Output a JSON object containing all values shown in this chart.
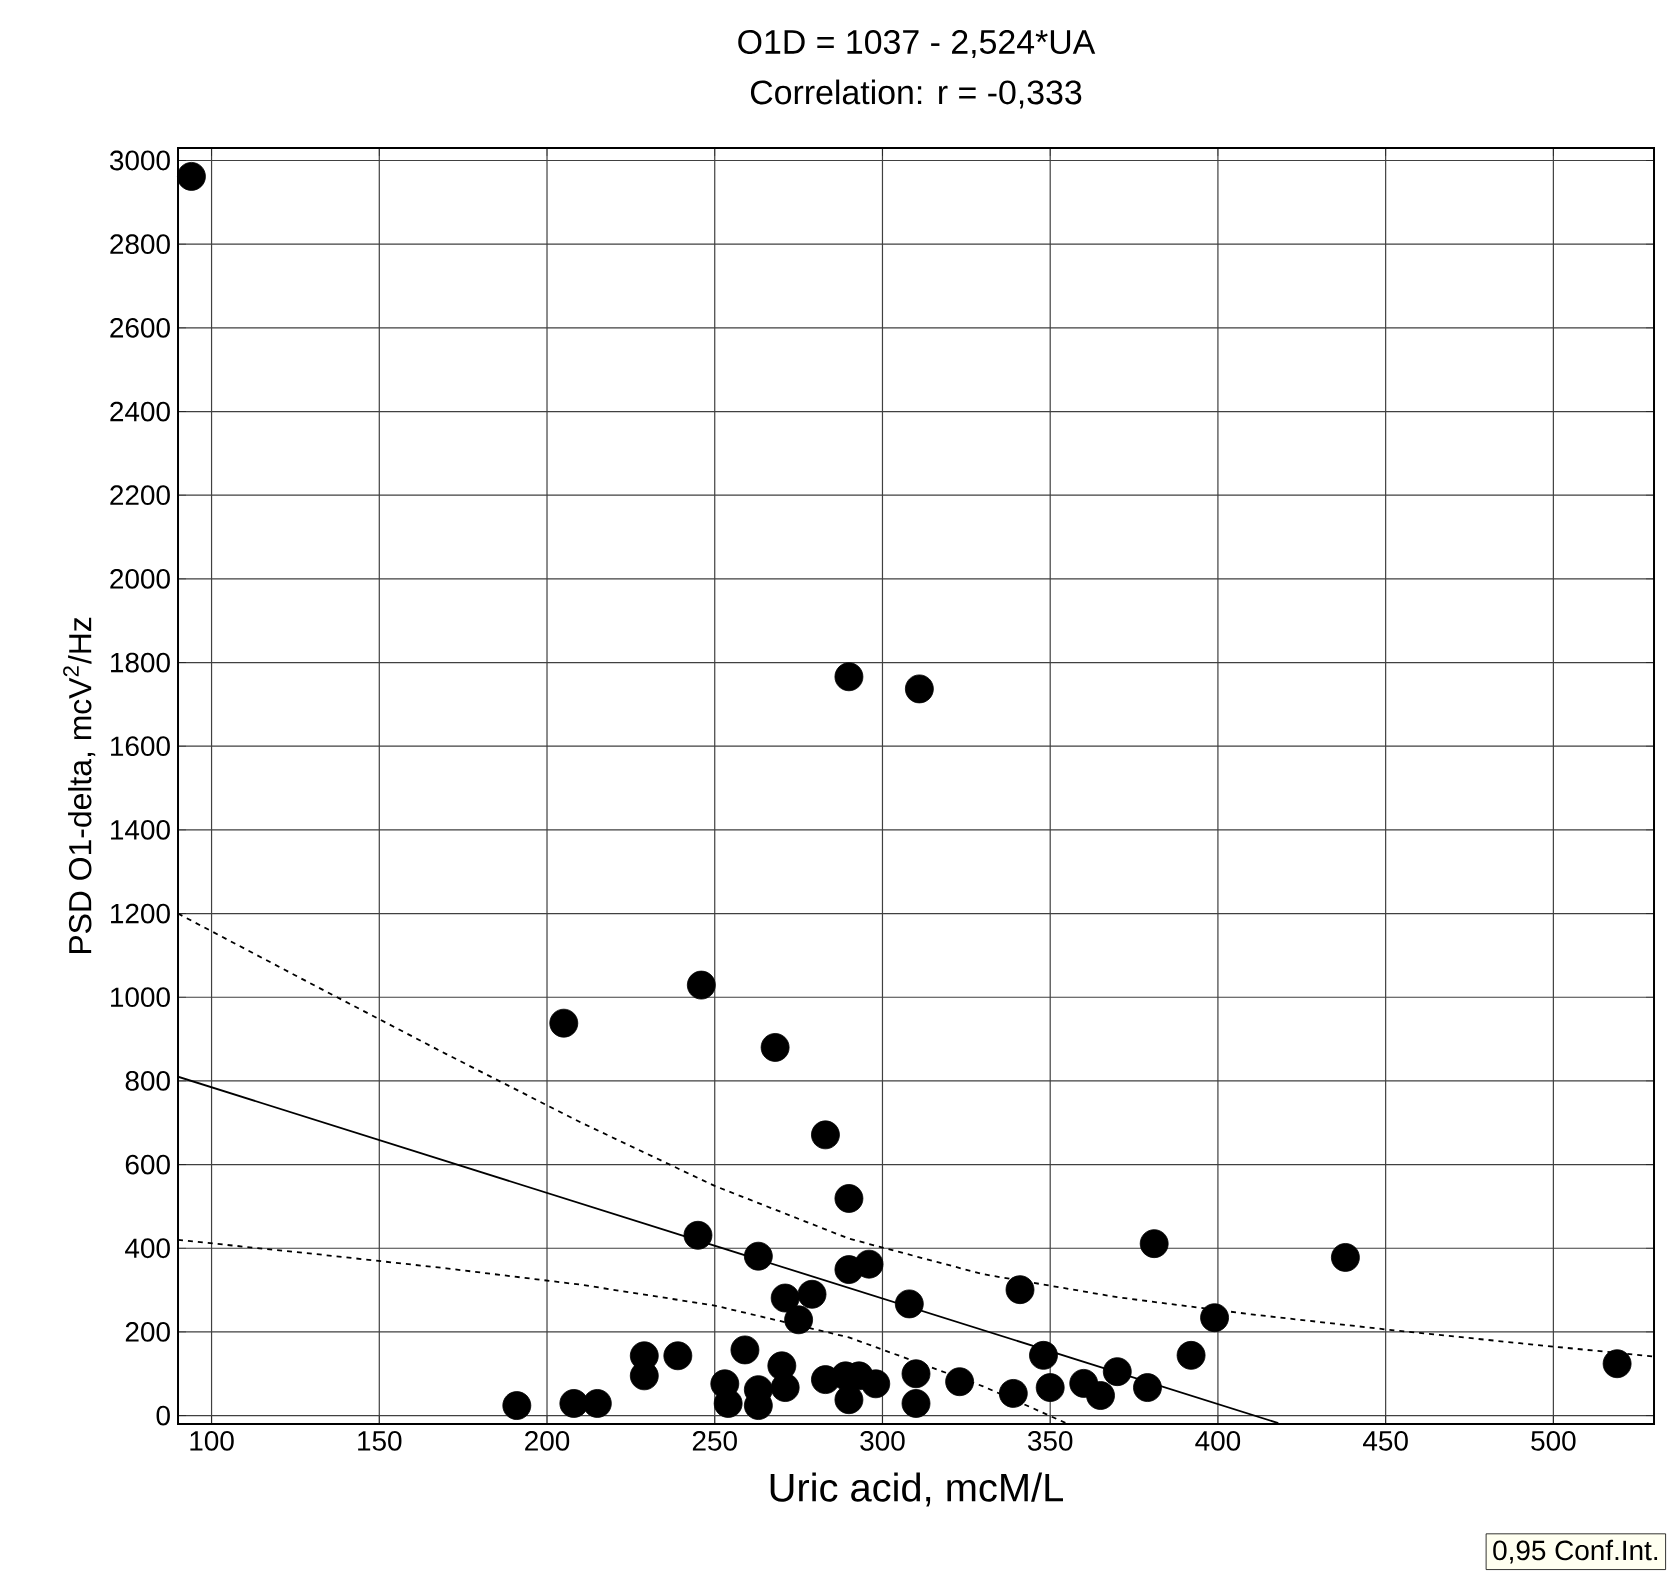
{
  "chart_data": {
    "type": "scatter",
    "title": "O1D = 1037 - 2,524*UA",
    "subtitle": "Correlation: r = -0,333",
    "xlabel": "Uric acid, mcM/L",
    "ylabel": "PSD O1-delta, mcV$^{2}$/Hz",
    "annotations": [
      "0,95 Conf.Int."
    ],
    "xlim": [
      90,
      530
    ],
    "ylim": [
      -20,
      3030
    ],
    "xticks": [
      100,
      150,
      200,
      250,
      300,
      350,
      400,
      450,
      500
    ],
    "yticks": [
      0,
      200,
      400,
      600,
      800,
      1000,
      1200,
      1400,
      1600,
      1800,
      2000,
      2200,
      2400,
      2600,
      2800,
      3000
    ],
    "grid": true,
    "series": [
      {
        "marker": "circle",
        "color": "#000000",
        "x": [
          94,
          290,
          311,
          246,
          205,
          268,
          283,
          290,
          245,
          263,
          290,
          296,
          308,
          271,
          279,
          275,
          341,
          381,
          438,
          519,
          399,
          392,
          229,
          229,
          239,
          259,
          253,
          254,
          263,
          263,
          270,
          271,
          283,
          289,
          293,
          290,
          298,
          310,
          310,
          191,
          208,
          215,
          323,
          348,
          339,
          350,
          360,
          365,
          370,
          379
        ],
        "values": [
          2962,
          1766,
          1737,
          1029,
          938,
          880,
          671,
          519,
          431,
          381,
          349,
          362,
          267,
          281,
          290,
          229,
          301,
          411,
          378,
          124,
          234,
          144,
          143,
          95,
          143,
          157,
          76,
          29,
          62,
          24,
          119,
          67,
          86,
          95,
          95,
          38,
          76,
          100,
          29,
          24,
          29,
          29,
          81,
          144,
          53,
          67,
          77,
          48,
          105,
          67
        ]
      },
      {
        "type": "line",
        "marker": "none",
        "color": "#000000",
        "line_style": "solid",
        "x": [
          90,
          418
        ],
        "values": [
          810,
          -18
        ]
      },
      {
        "type": "line",
        "marker": "none",
        "color": "#000000",
        "line_style": "dashed",
        "x": [
          90,
          130,
          170,
          210,
          250,
          290,
          330,
          370,
          410,
          450,
          490,
          530
        ],
        "values": [
          1200,
          1031,
          864,
          701,
          549,
          423,
          338,
          283,
          242,
          206,
          173,
          141
        ]
      },
      {
        "type": "line",
        "marker": "none",
        "color": "#000000",
        "line_style": "dashed",
        "x": [
          90,
          130,
          170,
          210,
          250,
          290,
          330,
          345,
          355
        ],
        "values": [
          420,
          387,
          352,
          313,
          263,
          187,
          70,
          17,
          -19
        ]
      }
    ]
  }
}
